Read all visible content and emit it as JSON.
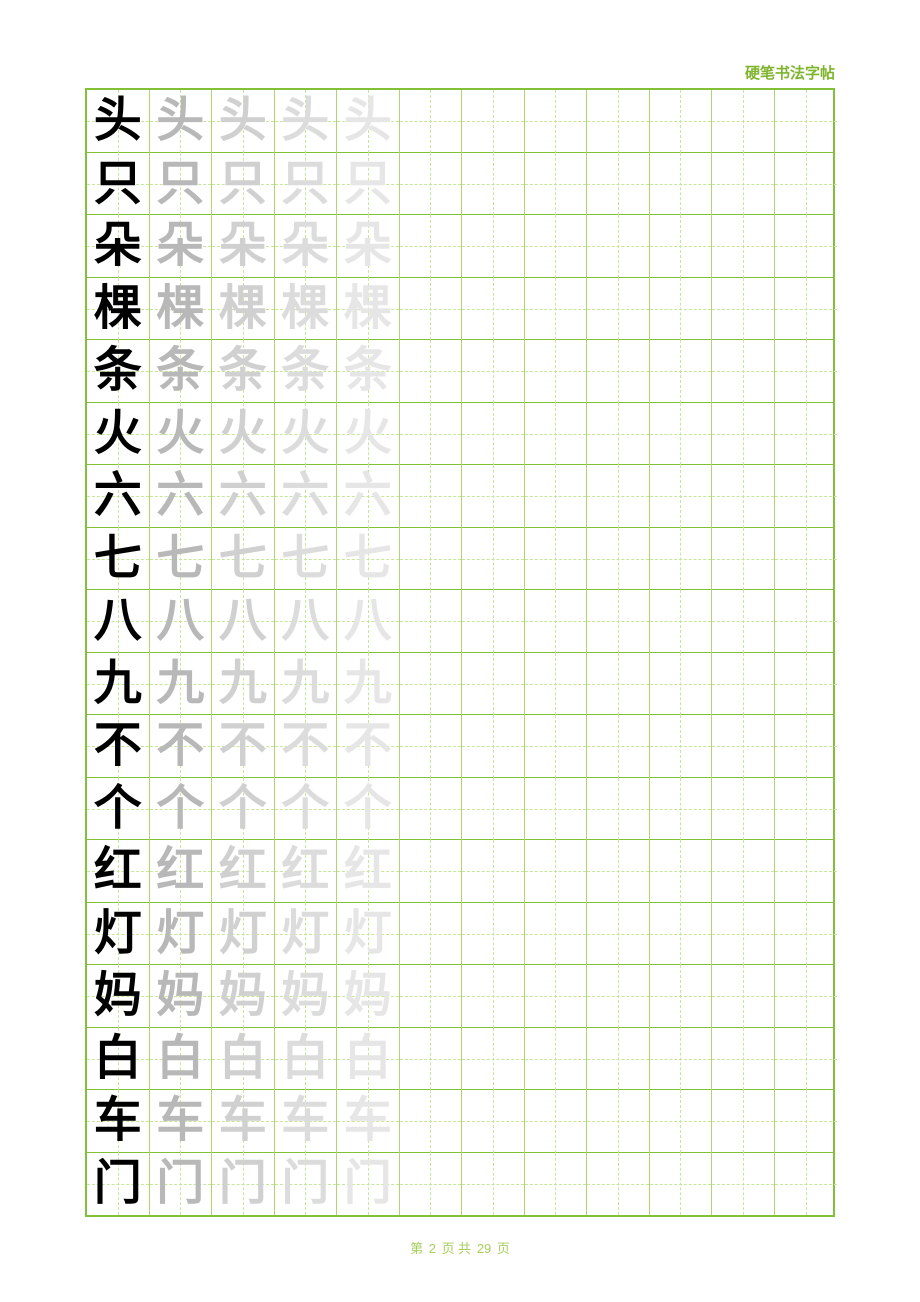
{
  "title": "硬笔书法字帖",
  "colors": {
    "grid_border": "#82c038",
    "cell_border": "#aed66f",
    "guide_dash": "#c8e69a",
    "header_text": "#7fb52e",
    "footer_text": "#a8cc5e",
    "trace_chars": [
      "#b8b8b8",
      "#d0d0d0",
      "#dcdcdc",
      "#e6e6e6"
    ]
  },
  "layout": {
    "columns": 12,
    "rows": 18,
    "trace_columns": 4,
    "cell_size": 62.5,
    "char_fontsize": 48
  },
  "characters": [
    "头",
    "只",
    "朵",
    "棵",
    "条",
    "火",
    "六",
    "七",
    "八",
    "九",
    "不",
    "个",
    "红",
    "灯",
    "妈",
    "白",
    "车",
    "门"
  ],
  "footer": {
    "prefix": "第",
    "page": "2",
    "mid": "页 共",
    "total": "29",
    "suffix": "页"
  }
}
